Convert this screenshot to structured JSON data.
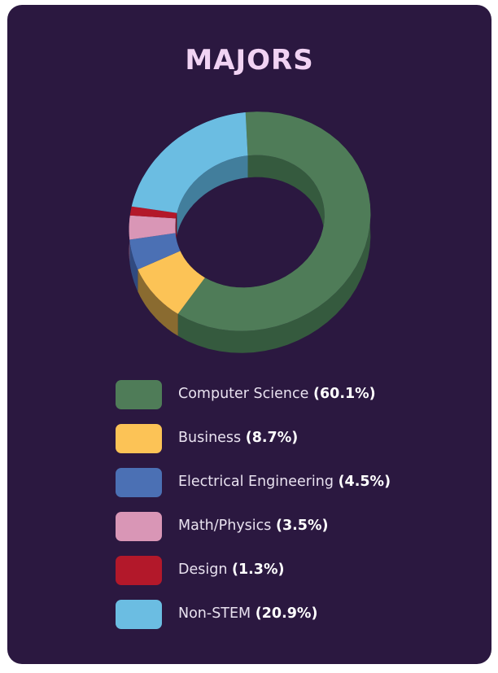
{
  "chart_data": {
    "type": "pie",
    "variant": "donut-3d",
    "title": "MAJORS",
    "categories": [
      "Computer Science",
      "Business",
      "Electrical Engineering",
      "Math/Physics",
      "Design",
      "Non-STEM"
    ],
    "values": [
      60.1,
      8.7,
      4.5,
      3.5,
      1.3,
      20.9
    ],
    "value_labels": [
      "(60.1%)",
      "(8.7%)",
      "(4.5%)",
      "(3.5%)",
      "(1.3%)",
      "(20.9%)"
    ],
    "colors": [
      "#4f7c58",
      "#fcc356",
      "#4b70b4",
      "#d996b6",
      "#b3182a",
      "#6bbde2"
    ],
    "side_colors": [
      "#355a3e",
      "#8a6b30",
      "#304a80",
      "#9a6079",
      "#7a1020",
      "#427e9c"
    ],
    "legend_position": "bottom",
    "background": "#2b1840",
    "title_color": "#f1d3f3"
  }
}
